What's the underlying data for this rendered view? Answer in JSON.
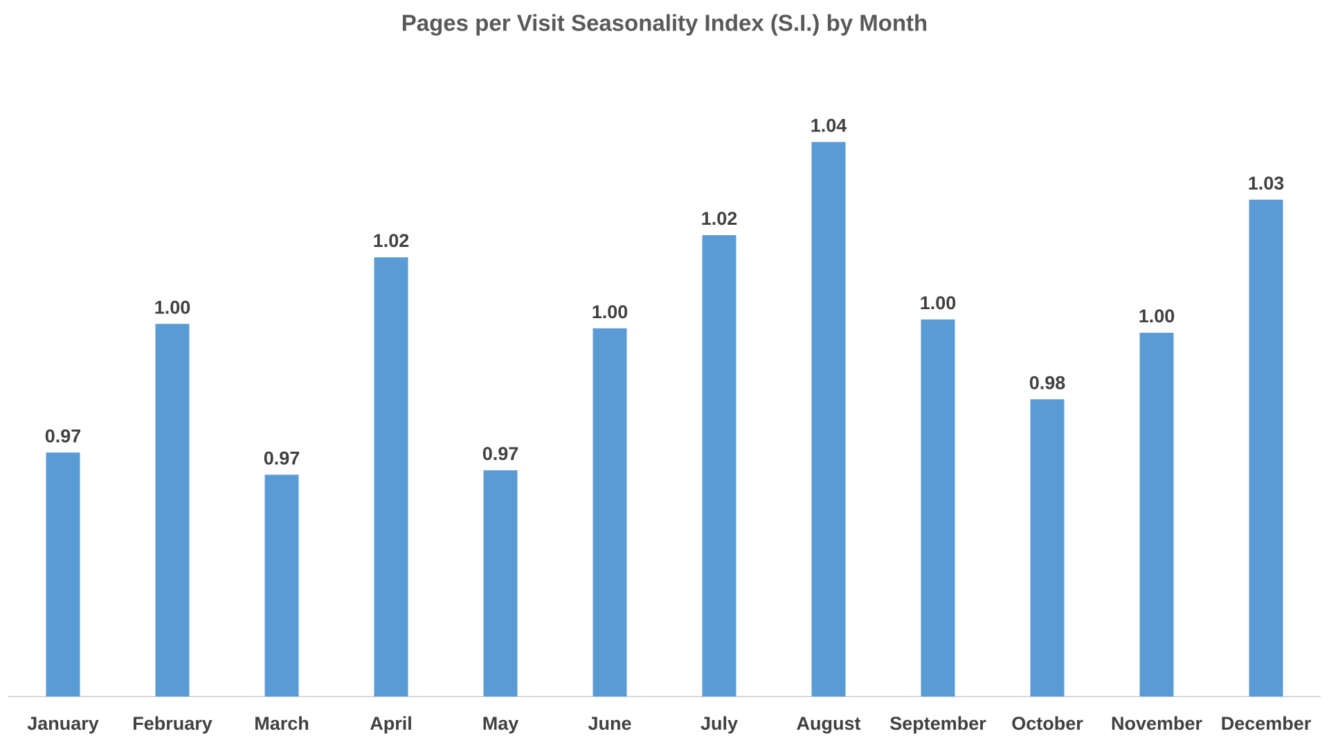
{
  "chart_data": {
    "type": "bar",
    "title": "Pages per Visit Seasonality Index (S.I.) by Month",
    "categories": [
      "January",
      "February",
      "March",
      "April",
      "May",
      "June",
      "July",
      "August",
      "September",
      "October",
      "November",
      "December"
    ],
    "values": [
      0.972,
      1.001,
      0.967,
      1.016,
      0.968,
      1.0,
      1.021,
      1.042,
      1.002,
      0.984,
      0.999,
      1.029
    ],
    "value_labels": [
      "0.97",
      "1.00",
      "0.97",
      "1.02",
      "0.97",
      "1.00",
      "1.02",
      "1.04",
      "1.00",
      "0.98",
      "1.00",
      "1.03"
    ],
    "color": "#5b9bd5",
    "ylim": [
      0.917,
      1.05
    ]
  }
}
